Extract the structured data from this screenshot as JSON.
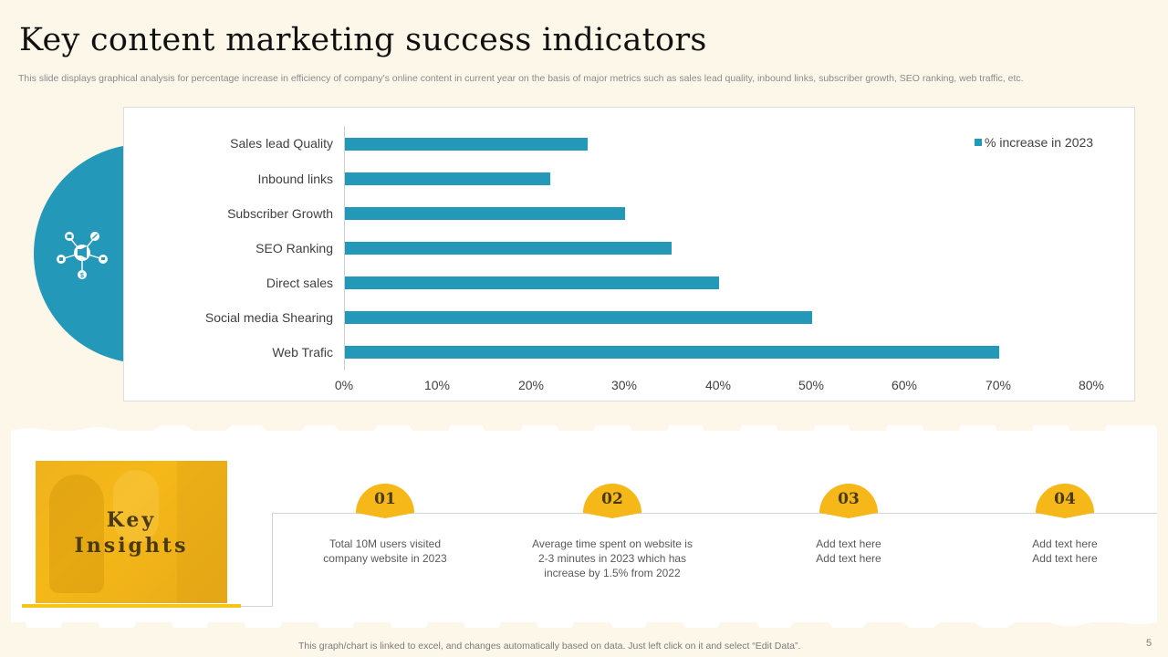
{
  "slide": {
    "title": "Key content marketing success indicators",
    "subtitle": "This slide displays graphical analysis for percentage increase in efficiency of company's online content in current year on the basis of major metrics such as sales lead quality, inbound links, subscriber growth, SEO ranking, web traffic, etc.",
    "page_number": "5",
    "footer_note": "This graph/chart is linked to excel,  and changes automatically based on data. Just left click on it and select “Edit Data”."
  },
  "chart_data": {
    "type": "bar",
    "orientation": "horizontal",
    "title": "",
    "categories": [
      "Sales lead Quality",
      "Inbound links",
      "Subscriber Growth",
      "SEO Ranking",
      "Direct sales",
      "Social media Shearing",
      "Web Trafic"
    ],
    "series": [
      {
        "name": "% increase in 2023",
        "values": [
          26,
          22,
          30,
          35,
          40,
          50,
          70
        ],
        "color": "#2498b8"
      }
    ],
    "x_ticks": [
      "0%",
      "10%",
      "20%",
      "30%",
      "40%",
      "50%",
      "60%",
      "70%",
      "80%"
    ],
    "xlim": [
      0,
      80
    ],
    "xlabel": "",
    "ylabel": "",
    "grid": false,
    "legend_position": "top-right",
    "value_unit": "%"
  },
  "colors": {
    "accent_blue": "#2498b8",
    "accent_yellow": "#f5b818",
    "background": "#fdf7ea"
  },
  "insights": {
    "image_label_line1": "Key",
    "image_label_line2": "Insights",
    "items": [
      {
        "number": "01",
        "line1": "Total 10M users visited",
        "line2": "company website in 2023",
        "line3": ""
      },
      {
        "number": "02",
        "line1": "Average  time spent on website is",
        "line2": "2-3 minutes in 2023 which has",
        "line3": "increase by 1.5% from 2022"
      },
      {
        "number": "03",
        "line1": "Add text here",
        "line2": "Add text here",
        "line3": ""
      },
      {
        "number": "04",
        "line1": "Add text here",
        "line2": "Add text here",
        "line3": ""
      }
    ]
  },
  "icons": {
    "hub": "marketing-network-icon"
  }
}
